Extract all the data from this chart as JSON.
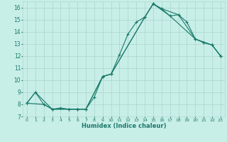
{
  "xlabel": "Humidex (Indice chaleur)",
  "bg_color": "#c8eee8",
  "grid_color": "#b0d8d0",
  "line_color": "#1a7a6a",
  "xlim": [
    -0.5,
    23.5
  ],
  "ylim": [
    7.0,
    16.5
  ],
  "yticks": [
    7,
    8,
    9,
    10,
    11,
    12,
    13,
    14,
    15,
    16
  ],
  "xticks": [
    0,
    1,
    2,
    3,
    4,
    5,
    6,
    7,
    8,
    9,
    10,
    11,
    12,
    13,
    14,
    15,
    16,
    17,
    18,
    19,
    20,
    21,
    22,
    23
  ],
  "series1_x": [
    0,
    1,
    2,
    3,
    4,
    5,
    6,
    7,
    8,
    9,
    10,
    11,
    12,
    13,
    14,
    15,
    16,
    17,
    18,
    19,
    20,
    21,
    22,
    23
  ],
  "series1_y": [
    8.1,
    9.0,
    8.0,
    7.6,
    7.7,
    7.6,
    7.6,
    7.6,
    8.6,
    10.3,
    10.5,
    12.1,
    13.8,
    14.8,
    15.2,
    16.3,
    15.9,
    15.3,
    15.4,
    14.8,
    13.4,
    13.1,
    12.9,
    12.0
  ],
  "series2_x": [
    0,
    1,
    3,
    5,
    6,
    7,
    9,
    10,
    14,
    15,
    16,
    18,
    20,
    21,
    22,
    23
  ],
  "series2_y": [
    8.1,
    9.0,
    7.6,
    7.6,
    7.6,
    7.6,
    10.3,
    10.5,
    15.2,
    16.3,
    15.9,
    15.4,
    13.4,
    13.1,
    12.9,
    12.0
  ],
  "series3_x": [
    0,
    2,
    3,
    6,
    7,
    9,
    10,
    14,
    15,
    17,
    20,
    22,
    23
  ],
  "series3_y": [
    8.1,
    8.0,
    7.6,
    7.6,
    7.6,
    10.3,
    10.5,
    15.2,
    16.3,
    15.3,
    13.4,
    12.9,
    12.0
  ]
}
